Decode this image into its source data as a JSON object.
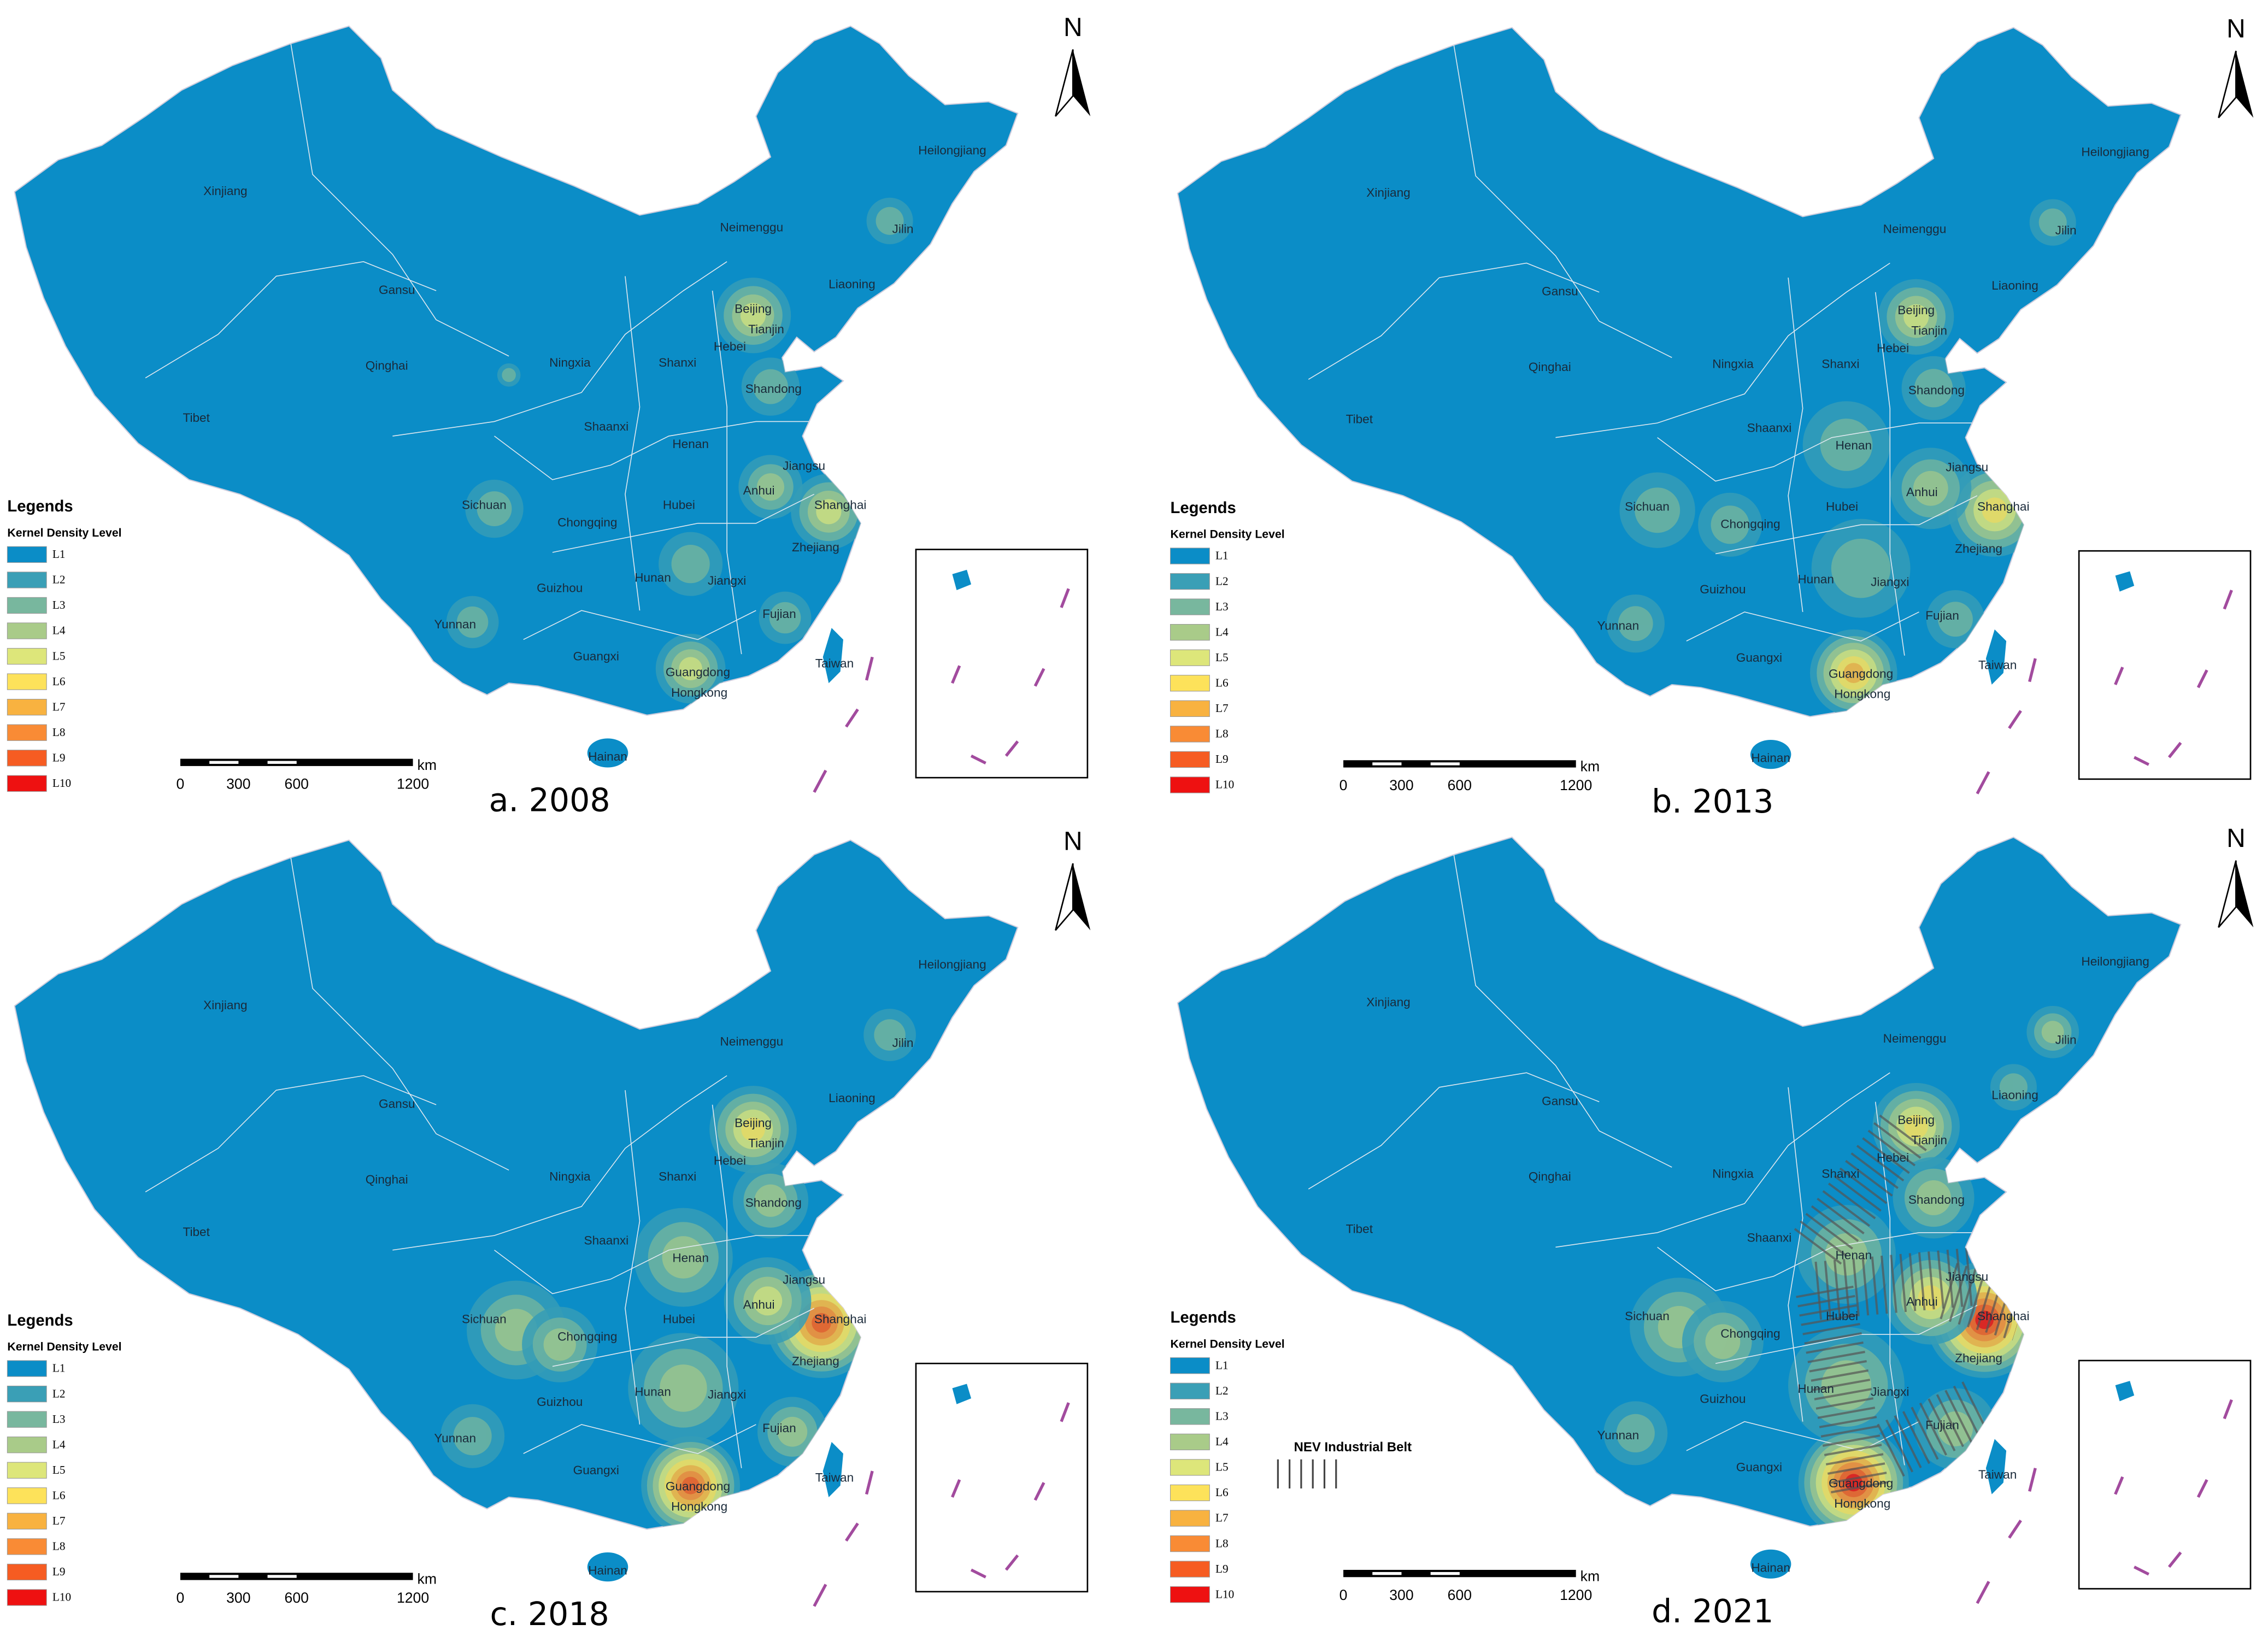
{
  "panels": [
    {
      "caption": "a. 2008"
    },
    {
      "caption": "b. 2013"
    },
    {
      "caption": "c. 2018"
    },
    {
      "caption": "d. 2021"
    }
  ],
  "map": {
    "north": "N",
    "provinces": [
      "Xinjiang",
      "Gansu",
      "Qinghai",
      "Tibet",
      "Sichuan",
      "Yunnan",
      "Ningxia",
      "Shaanxi",
      "Chongqing",
      "Guizhou",
      "Guangxi",
      "Hainan",
      "Shanxi",
      "Henan",
      "Hubei",
      "Hunan",
      "Jiangxi",
      "Guangdong",
      "Hongkong",
      "Fujian",
      "Taiwan",
      "Zhejiang",
      "Shanghai",
      "Jiangsu",
      "Anhui",
      "Shandong",
      "Hebei",
      "Tianjin",
      "Beijing",
      "Liaoning",
      "Jilin",
      "Neimenggu",
      "Heilongjiang"
    ],
    "legend": {
      "title": "Legends",
      "subtitle": "Kernel Density Level",
      "levels": [
        {
          "label": "L1",
          "color": "#0b8dc7"
        },
        {
          "label": "L2",
          "color": "#3a9fb6"
        },
        {
          "label": "L3",
          "color": "#78b79e"
        },
        {
          "label": "L4",
          "color": "#a9cb89"
        },
        {
          "label": "L5",
          "color": "#dde67a"
        },
        {
          "label": "L6",
          "color": "#fde25a"
        },
        {
          "label": "L7",
          "color": "#f8b240"
        },
        {
          "label": "L8",
          "color": "#f98b35"
        },
        {
          "label": "L9",
          "color": "#f65c22"
        },
        {
          "label": "L10",
          "color": "#ee1111"
        }
      ]
    },
    "scale": {
      "ticks": [
        0,
        300,
        600,
        1200
      ],
      "unit": "km"
    }
  },
  "belt": {
    "label": "NEV Industrial Belt"
  }
}
